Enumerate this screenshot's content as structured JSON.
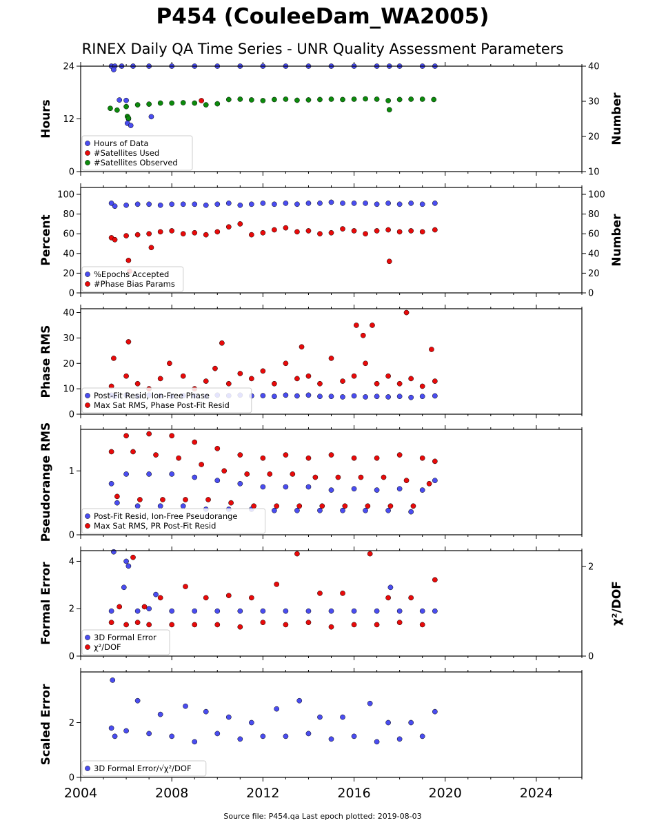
{
  "figure": {
    "title": "P454 (CouleeDam_WA2005)",
    "subtitle": "RINEX Daily QA Time Series - UNR Quality Assessment Parameters",
    "footer": "Source file: P454.qa Last epoch plotted: 2019-08-03"
  },
  "colors": {
    "blue": "#4a4df0",
    "red": "#e80a0a",
    "green": "#0c8a0c",
    "edge": "#000000"
  },
  "chart_data": [
    {
      "type": "scatter",
      "ylabel": "Hours",
      "ylabel_right": "Number",
      "xlim": [
        2004,
        2026
      ],
      "ylim": [
        0,
        24
      ],
      "yticks": [
        "0",
        "12",
        "24"
      ],
      "ylim_right": [
        10,
        40
      ],
      "yticks_right": [
        "10",
        "20",
        "30",
        "40"
      ],
      "legend": [
        "Hours of Data",
        "#Satellites Used",
        "#Satellites Observed"
      ],
      "series": [
        {
          "name": "Hours of Data",
          "color": "blue",
          "axis": "left",
          "x": [
            2005.35,
            2005.5,
            2005.8,
            2006.3,
            2007.0,
            2008.0,
            2009.0,
            2010.0,
            2011.0,
            2012.0,
            2013.0,
            2014.0,
            2015.0,
            2016.0,
            2017.0,
            2017.55,
            2018.0,
            2019.0,
            2019.55,
            2005.45,
            2005.7,
            2006.0,
            2006.1,
            2006.05,
            2006.2,
            2007.1
          ],
          "y": [
            24,
            24,
            24,
            24,
            24,
            24,
            24,
            24,
            24,
            24,
            24,
            24,
            24,
            24,
            24,
            24,
            24,
            24,
            24,
            23.2,
            16.3,
            16.2,
            12.0,
            11.0,
            10.5,
            12.5
          ]
        },
        {
          "name": "#Satellites Used",
          "color": "red",
          "axis": "right",
          "x": [
            2009.3
          ],
          "y": [
            30.2
          ]
        },
        {
          "name": "#Satellites Observed",
          "color": "green",
          "axis": "right",
          "x": [
            2005.3,
            2005.6,
            2006.0,
            2006.5,
            2007.0,
            2007.5,
            2008.0,
            2008.5,
            2009.0,
            2009.5,
            2010.0,
            2010.5,
            2011.0,
            2011.5,
            2012.0,
            2012.5,
            2013.0,
            2013.5,
            2014.0,
            2014.5,
            2015.0,
            2015.5,
            2016.0,
            2016.5,
            2017.0,
            2017.5,
            2018.0,
            2018.5,
            2019.0,
            2019.5,
            2006.05,
            2006.1,
            2017.55
          ],
          "y": [
            28.0,
            27.5,
            28.5,
            29.0,
            29.2,
            29.5,
            29.5,
            29.6,
            29.5,
            29.0,
            29.3,
            30.5,
            30.6,
            30.4,
            30.2,
            30.5,
            30.6,
            30.3,
            30.4,
            30.5,
            30.6,
            30.5,
            30.6,
            30.7,
            30.6,
            30.2,
            30.5,
            30.6,
            30.6,
            30.5,
            25.7,
            25.2,
            27.6
          ]
        }
      ]
    },
    {
      "type": "scatter",
      "ylabel": "Percent",
      "ylabel_right": "Number",
      "xlim": [
        2004,
        2026
      ],
      "ylim": [
        0,
        107
      ],
      "yticks": [
        "0",
        "20",
        "40",
        "60",
        "80",
        "100"
      ],
      "ylim_right": [
        0,
        107
      ],
      "yticks_right": [
        "0",
        "20",
        "40",
        "60",
        "80",
        "100"
      ],
      "legend": [
        "%Epochs Accepted",
        "#Phase Bias Params"
      ],
      "series": [
        {
          "name": "%Epochs Accepted",
          "color": "blue",
          "axis": "left",
          "x": [
            2005.35,
            2005.5,
            2006.0,
            2006.5,
            2007.0,
            2007.5,
            2008.0,
            2008.5,
            2009.0,
            2009.5,
            2010.0,
            2010.5,
            2011.0,
            2011.5,
            2012.0,
            2012.5,
            2013.0,
            2013.5,
            2014.0,
            2014.5,
            2015.0,
            2015.5,
            2016.0,
            2016.5,
            2017.0,
            2017.5,
            2018.0,
            2018.5,
            2019.0,
            2019.55
          ],
          "y": [
            91,
            88,
            89,
            90,
            90,
            89,
            90,
            90,
            90,
            89,
            90,
            91,
            89,
            90,
            91,
            90,
            91,
            90,
            91,
            91,
            92,
            91,
            91,
            91,
            90,
            91,
            90,
            91,
            90,
            91
          ]
        },
        {
          "name": "#Phase Bias Params",
          "color": "red",
          "axis": "right",
          "x": [
            2005.35,
            2005.5,
            2006.0,
            2006.1,
            2006.15,
            2006.5,
            2007.0,
            2007.1,
            2007.5,
            2008.0,
            2008.5,
            2009.0,
            2009.5,
            2010.0,
            2010.5,
            2011.0,
            2011.5,
            2012.0,
            2012.5,
            2013.0,
            2013.5,
            2014.0,
            2014.5,
            2015.0,
            2015.5,
            2016.0,
            2016.5,
            2017.0,
            2017.5,
            2017.55,
            2018.0,
            2018.5,
            2019.0,
            2019.55
          ],
          "y": [
            56,
            54,
            58,
            33,
            22,
            59,
            60,
            46,
            62,
            63,
            60,
            61,
            59,
            62,
            67,
            70,
            59,
            61,
            64,
            66,
            62,
            63,
            60,
            61,
            65,
            63,
            60,
            63,
            64,
            32,
            62,
            63,
            62,
            64
          ]
        }
      ]
    },
    {
      "type": "scatter",
      "ylabel": "Phase RMS",
      "xlim": [
        2004,
        2026
      ],
      "ylim": [
        0,
        41.5
      ],
      "yticks": [
        "0",
        "10",
        "20",
        "30",
        "40"
      ],
      "legend": [
        "Post-Fit Resid, Ion-Free Phase",
        "Max Sat RMS, Phase Post-Fit Resid"
      ],
      "series": [
        {
          "name": "Post-Fit Resid, Ion-Free Phase",
          "color": "blue",
          "x": [
            2005.35,
            2005.5,
            2006.0,
            2006.5,
            2007.0,
            2007.5,
            2008.0,
            2008.5,
            2009.0,
            2009.5,
            2010.0,
            2010.5,
            2011.0,
            2011.5,
            2012.0,
            2012.5,
            2013.0,
            2013.5,
            2014.0,
            2014.5,
            2015.0,
            2015.5,
            2016.0,
            2016.5,
            2017.0,
            2017.5,
            2018.0,
            2018.5,
            2019.0,
            2019.55
          ],
          "y": [
            7.5,
            7.0,
            7.5,
            7.0,
            7.5,
            7.2,
            7.0,
            7.3,
            7.2,
            7.0,
            7.5,
            7.3,
            7.5,
            7.2,
            7.3,
            7.0,
            7.5,
            7.2,
            7.5,
            7.0,
            7.0,
            6.8,
            7.2,
            6.8,
            7.0,
            6.8,
            7.0,
            6.6,
            7.0,
            7.2
          ]
        },
        {
          "name": "Max Sat RMS, Phase Post-Fit Resid",
          "color": "red",
          "x": [
            2005.35,
            2005.45,
            2006.0,
            2006.1,
            2006.5,
            2007.0,
            2007.5,
            2007.9,
            2008.5,
            2009.0,
            2009.5,
            2009.9,
            2010.2,
            2010.5,
            2011.0,
            2011.5,
            2012.0,
            2012.5,
            2013.0,
            2013.5,
            2013.7,
            2014.0,
            2014.5,
            2015.0,
            2015.5,
            2016.0,
            2016.1,
            2016.4,
            2016.5,
            2016.8,
            2017.0,
            2017.5,
            2018.0,
            2018.3,
            2018.5,
            2019.0,
            2019.4,
            2019.55
          ],
          "y": [
            11,
            22,
            15,
            28.5,
            12,
            10,
            14,
            20,
            15,
            10,
            13,
            18,
            28,
            12,
            16,
            14,
            17,
            12,
            20,
            14,
            26.5,
            15,
            12,
            22,
            13,
            15,
            35,
            31,
            20,
            35,
            12,
            15,
            12,
            40,
            14,
            11,
            25.5,
            13
          ]
        }
      ]
    },
    {
      "type": "scatter",
      "ylabel": "Pseudorange RMS",
      "xlim": [
        2004,
        2026
      ],
      "ylim": [
        0,
        1.65
      ],
      "yticks": [
        "0",
        "1"
      ],
      "legend": [
        "Post-Fit Resid, Ion-Free Pseudorange",
        "Max Sat RMS, PR Post-Fit Resid"
      ],
      "series": [
        {
          "name": "Post-Fit Resid, Ion-Free Pseudorange",
          "color": "blue",
          "x": [
            2005.35,
            2005.6,
            2006.0,
            2006.5,
            2007.0,
            2007.5,
            2008.0,
            2008.5,
            2009.0,
            2009.5,
            2010.0,
            2010.5,
            2011.0,
            2011.5,
            2012.0,
            2012.5,
            2013.0,
            2013.5,
            2014.0,
            2014.5,
            2015.0,
            2015.5,
            2016.0,
            2016.5,
            2017.0,
            2017.5,
            2018.0,
            2018.5,
            2019.0,
            2019.55
          ],
          "y": [
            0.8,
            0.5,
            0.95,
            0.45,
            0.95,
            0.45,
            0.95,
            0.45,
            0.9,
            0.4,
            0.85,
            0.4,
            0.8,
            0.4,
            0.75,
            0.38,
            0.75,
            0.38,
            0.75,
            0.38,
            0.7,
            0.38,
            0.72,
            0.38,
            0.7,
            0.38,
            0.72,
            0.36,
            0.7,
            0.85
          ]
        },
        {
          "name": "Max Sat RMS, PR Post-Fit Resid",
          "color": "red",
          "x": [
            2005.35,
            2005.6,
            2006.0,
            2006.3,
            2006.6,
            2007.0,
            2007.3,
            2007.6,
            2008.0,
            2008.3,
            2008.6,
            2009.0,
            2009.3,
            2009.6,
            2010.0,
            2010.3,
            2010.6,
            2011.0,
            2011.3,
            2011.6,
            2012.0,
            2012.3,
            2012.6,
            2013.0,
            2013.3,
            2013.6,
            2014.0,
            2014.3,
            2014.6,
            2015.0,
            2015.3,
            2015.6,
            2016.0,
            2016.3,
            2016.6,
            2017.0,
            2017.3,
            2017.6,
            2018.0,
            2018.3,
            2018.6,
            2019.0,
            2019.3,
            2019.55
          ],
          "y": [
            1.3,
            0.6,
            1.55,
            1.3,
            0.55,
            1.58,
            1.25,
            0.55,
            1.55,
            1.2,
            0.55,
            1.45,
            1.1,
            0.55,
            1.35,
            1.0,
            0.5,
            1.25,
            0.95,
            0.45,
            1.2,
            0.95,
            0.45,
            1.25,
            0.95,
            0.45,
            1.2,
            0.9,
            0.45,
            1.25,
            0.9,
            0.45,
            1.2,
            0.9,
            0.45,
            1.2,
            0.9,
            0.45,
            1.25,
            0.85,
            0.45,
            1.2,
            0.8,
            1.15
          ]
        }
      ]
    },
    {
      "type": "scatter",
      "ylabel": "Formal Error",
      "ylabel_right": "χ²/DOF",
      "xlim": [
        2004,
        2026
      ],
      "ylim": [
        0,
        4.45
      ],
      "yticks": [
        "0",
        "2",
        "4"
      ],
      "ylim_right": [
        0,
        2.35
      ],
      "yticks_right": [
        "0",
        "2"
      ],
      "legend": [
        "3D Formal Error",
        "χ²/DOF"
      ],
      "series": [
        {
          "name": "3D Formal Error",
          "color": "blue",
          "axis": "left",
          "x": [
            2005.35,
            2005.45,
            2005.9,
            2006.0,
            2006.1,
            2006.5,
            2007.0,
            2007.3,
            2008.0,
            2009.0,
            2010.0,
            2011.0,
            2012.0,
            2013.0,
            2014.0,
            2015.0,
            2016.0,
            2017.0,
            2017.6,
            2018.0,
            2019.0,
            2019.55
          ],
          "y": [
            1.9,
            4.4,
            2.9,
            4.0,
            3.8,
            1.9,
            2.0,
            2.6,
            1.9,
            1.9,
            1.9,
            1.9,
            1.9,
            1.9,
            1.9,
            1.9,
            1.9,
            1.9,
            2.9,
            1.9,
            1.9,
            1.9
          ]
        },
        {
          "name": "χ²/DOF",
          "color": "red",
          "axis": "right",
          "x": [
            2005.35,
            2005.7,
            2006.0,
            2006.3,
            2006.5,
            2006.8,
            2007.0,
            2007.5,
            2008.0,
            2008.6,
            2009.0,
            2009.5,
            2010.0,
            2010.5,
            2011.0,
            2011.5,
            2012.0,
            2012.6,
            2013.0,
            2013.5,
            2014.0,
            2014.5,
            2015.0,
            2015.5,
            2016.0,
            2016.7,
            2017.0,
            2017.5,
            2018.0,
            2018.5,
            2019.0,
            2019.55
          ],
          "y": [
            0.75,
            1.1,
            0.7,
            2.2,
            0.75,
            1.1,
            0.7,
            1.3,
            0.7,
            1.55,
            0.7,
            1.3,
            0.7,
            1.35,
            0.65,
            1.3,
            0.75,
            1.6,
            0.7,
            2.28,
            0.75,
            1.4,
            0.65,
            1.4,
            0.7,
            2.28,
            0.7,
            1.3,
            0.75,
            1.3,
            0.7,
            1.7
          ]
        }
      ]
    },
    {
      "type": "scatter",
      "ylabel": "Scaled Error",
      "xlim": [
        2004,
        2026
      ],
      "ylim": [
        0,
        3.85
      ],
      "yticks": [
        "0",
        "2"
      ],
      "legend": [
        "3D Formal Error/√χ²/DOF"
      ],
      "series": [
        {
          "name": "3D Formal Error/√χ²/DOF",
          "color": "blue",
          "x": [
            2005.35,
            2005.4,
            2005.5,
            2006.0,
            2006.5,
            2007.0,
            2007.5,
            2008.0,
            2008.6,
            2009.0,
            2009.5,
            2010.0,
            2010.5,
            2011.0,
            2011.5,
            2012.0,
            2012.6,
            2013.0,
            2013.6,
            2014.0,
            2014.5,
            2015.0,
            2015.5,
            2016.0,
            2016.7,
            2017.0,
            2017.5,
            2018.0,
            2018.5,
            2019.0,
            2019.55
          ],
          "y": [
            1.8,
            3.55,
            1.5,
            1.7,
            2.8,
            1.6,
            2.3,
            1.5,
            2.6,
            1.3,
            2.4,
            1.6,
            2.2,
            1.4,
            2.0,
            1.5,
            2.5,
            1.5,
            2.8,
            1.6,
            2.2,
            1.4,
            2.2,
            1.5,
            2.7,
            1.3,
            2.0,
            1.4,
            2.0,
            1.5,
            2.4
          ]
        }
      ]
    }
  ],
  "x_ticks": [
    "2004",
    "2008",
    "2012",
    "2016",
    "2020",
    "2024"
  ]
}
